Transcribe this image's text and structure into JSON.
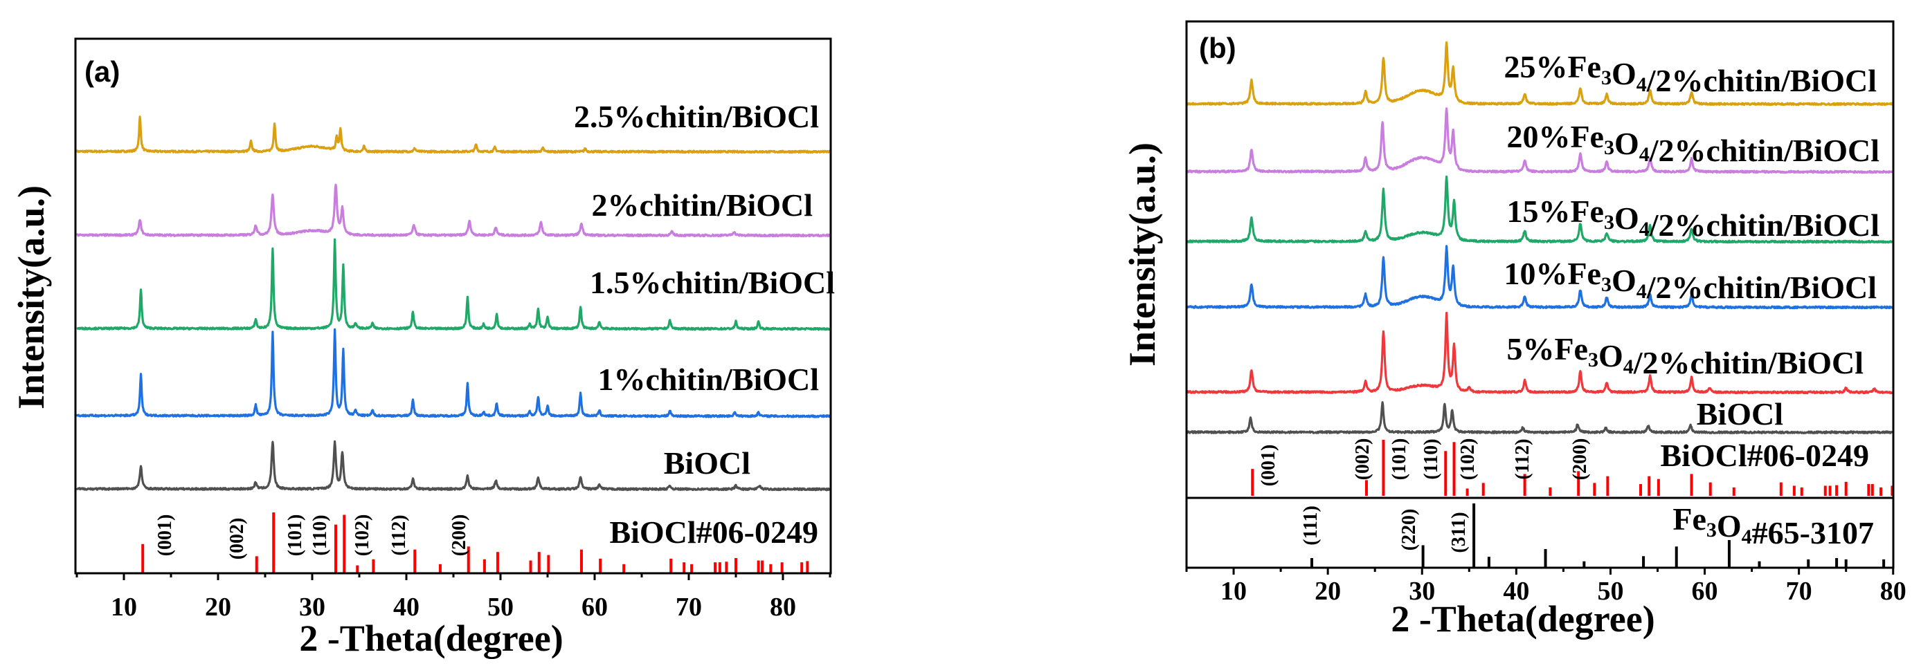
{
  "chart_data": [
    {
      "type": "line",
      "panel_label": "(a)",
      "xlabel": "2 -Theta(degree)",
      "ylabel": "Intensity(a.u.)",
      "xlim": [
        5,
        85
      ],
      "xticks": [
        10,
        20,
        30,
        40,
        50,
        60,
        70,
        80
      ],
      "series": [
        {
          "name": "2.5%chitin/BiOCl",
          "color": "#DAA010",
          "width": 0.22,
          "hump": 12,
          "peaks": [
            [
              11.7,
              80
            ],
            [
              23.5,
              24
            ],
            [
              26.0,
              65
            ],
            [
              32.6,
              30
            ],
            [
              33.0,
              50
            ],
            [
              35.5,
              12
            ],
            [
              40.9,
              8
            ],
            [
              47.4,
              17
            ],
            [
              49.4,
              10
            ],
            [
              54.5,
              8
            ],
            [
              59.0,
              7
            ]
          ]
        },
        {
          "name": "2%chitin/BiOCl",
          "color": "#C87DDF",
          "width": 0.3,
          "hump": 10,
          "peaks": [
            [
              11.7,
              35
            ],
            [
              24.0,
              23
            ],
            [
              25.8,
              95
            ],
            [
              32.5,
              113
            ],
            [
              33.2,
              60
            ],
            [
              40.8,
              23
            ],
            [
              46.7,
              33
            ],
            [
              49.5,
              17
            ],
            [
              54.3,
              30
            ],
            [
              58.6,
              27
            ],
            [
              68.2,
              8
            ],
            [
              74.8,
              8
            ]
          ]
        },
        {
          "name": "1.5%chitin/BiOCl",
          "color": "#20A868",
          "width": 0.22,
          "hump": 0,
          "peaks": [
            [
              11.8,
              90
            ],
            [
              24.0,
              22
            ],
            [
              25.8,
              187
            ],
            [
              32.4,
              204
            ],
            [
              33.3,
              147
            ],
            [
              34.6,
              13
            ],
            [
              36.4,
              13
            ],
            [
              40.7,
              40
            ],
            [
              46.5,
              74
            ],
            [
              48.2,
              10
            ],
            [
              49.6,
              34
            ],
            [
              53.1,
              10
            ],
            [
              54.0,
              47
            ],
            [
              55.0,
              27
            ],
            [
              58.5,
              52
            ],
            [
              60.5,
              17
            ],
            [
              68.0,
              20
            ],
            [
              75.0,
              17
            ],
            [
              77.4,
              17
            ]
          ]
        },
        {
          "name": "1%chitin/BiOCl",
          "color": "#1F70E0",
          "width": 0.22,
          "hump": 0,
          "peaks": [
            [
              11.8,
              95
            ],
            [
              24.0,
              25
            ],
            [
              25.8,
              195
            ],
            [
              32.4,
              200
            ],
            [
              33.3,
              153
            ],
            [
              34.6,
              13
            ],
            [
              36.4,
              13
            ],
            [
              40.7,
              37
            ],
            [
              46.5,
              75
            ],
            [
              48.2,
              10
            ],
            [
              49.6,
              30
            ],
            [
              53.1,
              10
            ],
            [
              54.0,
              45
            ],
            [
              55.0,
              25
            ],
            [
              58.5,
              53
            ],
            [
              60.5,
              13
            ],
            [
              68.0,
              13
            ],
            [
              74.9,
              10
            ],
            [
              77.4,
              10
            ]
          ]
        },
        {
          "name": "BiOCl",
          "color": "#505050",
          "width": 0.28,
          "hump": 0,
          "peaks": [
            [
              11.8,
              52
            ],
            [
              24.0,
              15
            ],
            [
              25.8,
              110
            ],
            [
              32.4,
              107
            ],
            [
              33.2,
              83
            ],
            [
              40.7,
              23
            ],
            [
              46.5,
              30
            ],
            [
              49.5,
              20
            ],
            [
              54.0,
              27
            ],
            [
              58.5,
              27
            ],
            [
              60.5,
              10
            ],
            [
              68.0,
              8
            ],
            [
              75.0,
              8
            ],
            [
              77.5,
              8
            ]
          ]
        }
      ],
      "references": [
        {
          "name": "BiOCl#06-0249",
          "color": "#FF0000",
          "lines": [
            [
              12.0,
              48
            ],
            [
              24.1,
              28
            ],
            [
              25.9,
              100
            ],
            [
              32.5,
              80
            ],
            [
              33.4,
              96
            ],
            [
              34.8,
              13
            ],
            [
              36.5,
              23
            ],
            [
              40.9,
              39
            ],
            [
              43.6,
              15
            ],
            [
              46.6,
              44
            ],
            [
              48.3,
              23
            ],
            [
              49.7,
              35
            ],
            [
              53.2,
              21
            ],
            [
              54.1,
              35
            ],
            [
              55.1,
              30
            ],
            [
              58.6,
              39
            ],
            [
              60.6,
              24
            ],
            [
              63.1,
              15
            ],
            [
              68.1,
              24
            ],
            [
              69.5,
              18
            ],
            [
              70.3,
              15
            ],
            [
              72.8,
              18
            ],
            [
              73.3,
              18
            ],
            [
              74.0,
              19
            ],
            [
              75.0,
              25
            ],
            [
              77.4,
              21
            ],
            [
              77.8,
              21
            ],
            [
              78.7,
              15
            ],
            [
              79.9,
              18
            ],
            [
              82.0,
              18
            ],
            [
              82.6,
              20
            ]
          ],
          "hkl": [
            "(001)",
            "(002)",
            "(101)",
            "(110)",
            "(102)",
            "(112)",
            "(200)"
          ]
        }
      ]
    },
    {
      "type": "line",
      "panel_label": "(b)",
      "xlabel": "2 -Theta(degree)",
      "ylabel": "Intensity(a.u.)",
      "xlim": [
        5,
        80
      ],
      "xticks": [
        10,
        20,
        30,
        40,
        50,
        60,
        70,
        80
      ],
      "series": [
        {
          "name": "25%Fe3O4/2%chitin/BiOCl",
          "color": "#DAA010",
          "width": 0.32,
          "hump": 30,
          "peaks": [
            [
              11.9,
              55
            ],
            [
              24.0,
              28
            ],
            [
              25.9,
              107
            ],
            [
              32.6,
              132
            ],
            [
              33.3,
              77
            ],
            [
              40.9,
              23
            ],
            [
              46.8,
              37
            ],
            [
              49.6,
              22
            ],
            [
              54.2,
              33
            ],
            [
              58.6,
              27
            ]
          ]
        },
        {
          "name": "20%Fe3O4/2%chitin/BiOCl",
          "color": "#C87DDF",
          "width": 0.32,
          "hump": 32,
          "peaks": [
            [
              11.9,
              51
            ],
            [
              24.0,
              31
            ],
            [
              25.8,
              115
            ],
            [
              32.6,
              136
            ],
            [
              33.3,
              86
            ],
            [
              40.9,
              25
            ],
            [
              46.8,
              43
            ],
            [
              49.6,
              23
            ],
            [
              54.2,
              31
            ],
            [
              58.6,
              30
            ]
          ]
        },
        {
          "name": "15%Fe3O4/2%chitin/BiOCl",
          "color": "#20A868",
          "width": 0.32,
          "hump": 20,
          "peaks": [
            [
              11.9,
              55
            ],
            [
              24.0,
              23
            ],
            [
              25.9,
              120
            ],
            [
              32.6,
              142
            ],
            [
              33.4,
              88
            ],
            [
              40.9,
              25
            ],
            [
              46.8,
              42
            ],
            [
              49.6,
              20
            ],
            [
              54.2,
              38
            ],
            [
              58.6,
              30
            ]
          ]
        },
        {
          "name": "10%Fe3O4/2%chitin/BiOCl",
          "color": "#1F70E0",
          "width": 0.32,
          "hump": 24,
          "peaks": [
            [
              11.9,
              54
            ],
            [
              24.0,
              29
            ],
            [
              25.9,
              114
            ],
            [
              32.6,
              130
            ],
            [
              33.3,
              87
            ],
            [
              40.9,
              24
            ],
            [
              46.8,
              40
            ],
            [
              49.6,
              22
            ],
            [
              54.2,
              29
            ],
            [
              58.6,
              28
            ]
          ]
        },
        {
          "name": "5%Fe3O4/2%chitin/BiOCl",
          "color": "#F0383C",
          "width": 0.3,
          "hump": 15,
          "peaks": [
            [
              11.9,
              52
            ],
            [
              24.0,
              25
            ],
            [
              25.9,
              142
            ],
            [
              32.6,
              175
            ],
            [
              33.4,
              105
            ],
            [
              35.0,
              10
            ],
            [
              40.9,
              27
            ],
            [
              46.8,
              48
            ],
            [
              49.6,
              23
            ],
            [
              54.2,
              38
            ],
            [
              58.6,
              34
            ],
            [
              60.5,
              10
            ],
            [
              75.0,
              10
            ],
            [
              78.0,
              8
            ]
          ]
        },
        {
          "name": "BiOCl",
          "color": "#505050",
          "width": 0.28,
          "hump": 0,
          "peaks": [
            [
              11.8,
              33
            ],
            [
              25.8,
              68
            ],
            [
              32.4,
              65
            ],
            [
              33.2,
              50
            ],
            [
              40.7,
              11
            ],
            [
              46.5,
              18
            ],
            [
              49.5,
              10
            ],
            [
              54.0,
              16
            ],
            [
              58.5,
              17
            ]
          ]
        }
      ],
      "references": [
        {
          "name": "BiOCl#06-0249",
          "color": "#FF0000",
          "lines": [
            [
              12.0,
              48
            ],
            [
              24.1,
              28
            ],
            [
              25.9,
              100
            ],
            [
              32.5,
              80
            ],
            [
              33.4,
              96
            ],
            [
              34.8,
              13
            ],
            [
              36.5,
              23
            ],
            [
              40.9,
              39
            ],
            [
              43.6,
              15
            ],
            [
              46.6,
              44
            ],
            [
              48.3,
              23
            ],
            [
              49.7,
              35
            ],
            [
              53.2,
              21
            ],
            [
              54.1,
              35
            ],
            [
              55.1,
              30
            ],
            [
              58.6,
              39
            ],
            [
              60.6,
              24
            ],
            [
              63.1,
              15
            ],
            [
              68.1,
              24
            ],
            [
              69.5,
              18
            ],
            [
              70.3,
              15
            ],
            [
              72.8,
              18
            ],
            [
              73.3,
              18
            ],
            [
              74.0,
              19
            ],
            [
              75.0,
              25
            ],
            [
              77.4,
              21
            ],
            [
              77.8,
              21
            ],
            [
              78.7,
              15
            ],
            [
              79.9,
              18
            ]
          ],
          "hkl": [
            "(001)",
            "(002)",
            "(101)",
            "(110)",
            "(102)",
            "(112)",
            "(200)"
          ]
        },
        {
          "name": "Fe3O4#65-3107",
          "color": "#000000",
          "lines": [
            [
              18.3,
              15
            ],
            [
              30.1,
              35
            ],
            [
              35.5,
              100
            ],
            [
              37.1,
              17
            ],
            [
              43.1,
              29
            ],
            [
              47.2,
              10
            ],
            [
              53.5,
              18
            ],
            [
              57.0,
              33
            ],
            [
              62.6,
              43
            ],
            [
              65.8,
              10
            ],
            [
              71.0,
              13
            ],
            [
              74.0,
              15
            ],
            [
              75.0,
              13
            ],
            [
              79.0,
              13
            ]
          ],
          "hkl": [
            "(111)",
            "(220)",
            "(311)"
          ]
        }
      ]
    }
  ]
}
